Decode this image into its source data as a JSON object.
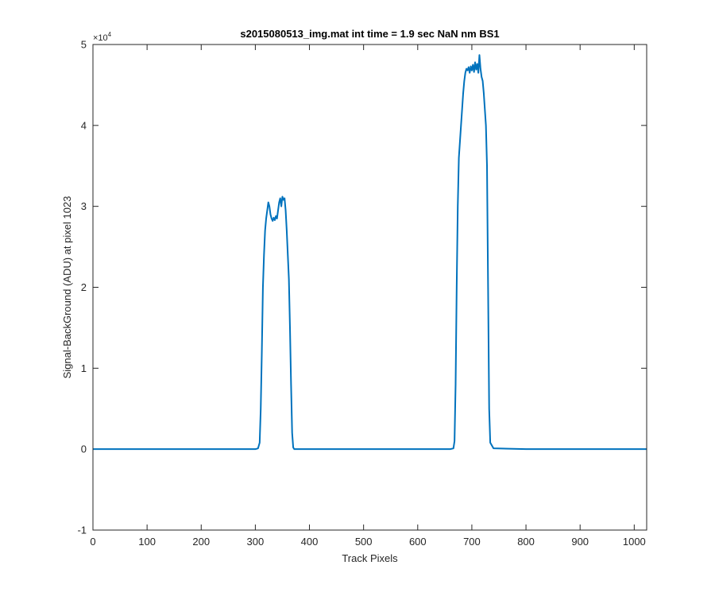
{
  "chart_data": {
    "type": "line",
    "title": "s2015080513_img.mat int time = 1.9 sec  NaN nm BS1",
    "xlabel": "Track Pixels",
    "ylabel": "Signal-BackGround (ADU) at pixel 1023",
    "y_exponent_label": "×10",
    "y_exponent_power": "4",
    "xlim": [
      0,
      1023
    ],
    "ylim": [
      -10000,
      50000
    ],
    "x_ticks": [
      0,
      100,
      200,
      300,
      400,
      500,
      600,
      700,
      800,
      900,
      1000
    ],
    "y_ticks": [
      -10000,
      0,
      10000,
      20000,
      30000,
      40000,
      50000
    ],
    "x_tick_labels": [
      "0",
      "100",
      "200",
      "300",
      "400",
      "500",
      "600",
      "700",
      "800",
      "900",
      "1000"
    ],
    "y_tick_labels": [
      "-1",
      "0",
      "1",
      "2",
      "3",
      "4",
      "5"
    ],
    "grid": false,
    "line_color": "#0072BD",
    "series": [
      {
        "x": [
          0,
          100,
          200,
          300,
          305,
          308,
          310,
          312,
          314,
          316,
          318,
          320,
          322,
          324,
          326,
          328,
          330,
          332,
          334,
          336,
          338,
          340,
          342,
          344,
          346,
          348,
          350,
          352,
          354,
          356,
          358,
          360,
          362,
          364,
          366,
          368,
          370,
          372,
          374,
          376,
          380,
          400,
          500,
          600,
          660,
          666,
          668,
          670,
          672,
          674,
          676,
          678,
          680,
          682,
          684,
          686,
          688,
          690,
          692,
          694,
          696,
          698,
          700,
          702,
          704,
          706,
          708,
          710,
          712,
          714,
          716,
          718,
          720,
          722,
          724,
          726,
          728,
          730,
          732,
          734,
          740,
          800,
          900,
          1000,
          1023
        ],
        "y": [
          0,
          0,
          0,
          0,
          100,
          800,
          5000,
          12000,
          20000,
          24000,
          27000,
          28500,
          29500,
          30500,
          30000,
          29000,
          28500,
          28200,
          28600,
          28300,
          28800,
          28500,
          29500,
          30500,
          31000,
          30000,
          31200,
          30800,
          31000,
          29500,
          27000,
          24000,
          21000,
          15000,
          8000,
          2000,
          200,
          0,
          0,
          0,
          0,
          0,
          0,
          0,
          0,
          100,
          1000,
          8000,
          20000,
          30000,
          36000,
          38000,
          40000,
          42000,
          44000,
          45500,
          46500,
          47000,
          46800,
          47200,
          46500,
          47300,
          46800,
          47500,
          46600,
          47800,
          46900,
          47600,
          46500,
          48700,
          47000,
          46000,
          45500,
          44000,
          42000,
          40000,
          35000,
          20000,
          5000,
          800,
          100,
          0,
          0,
          0,
          0
        ]
      }
    ]
  }
}
